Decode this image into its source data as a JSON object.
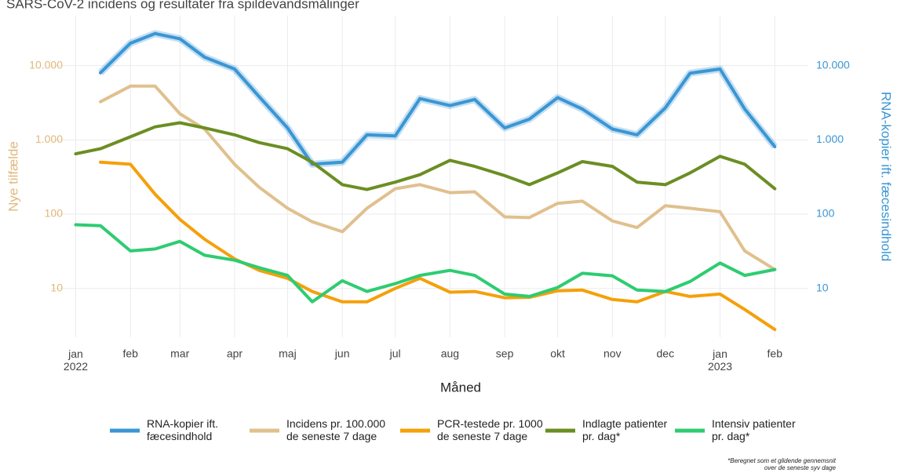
{
  "chart_data": {
    "type": "line",
    "title": "SARS-CoV-2 incidens og resultater fra spildevandsmålinger",
    "xlabel": "Måned",
    "ylabel": "Nye tilfælde",
    "y2label": "RNA-kopier ift. fæcesindhold",
    "footnote": "*Beregnet som et glidende gennemsnit\nover de seneste syv dage",
    "log_y": true,
    "grid": true,
    "legend": "bottom",
    "xlim": [
      "2021-12-18",
      "2023-02-20"
    ],
    "xticks": [
      {
        "value": "2022-01-01",
        "label": "jan\n2022"
      },
      {
        "value": "2022-02-01",
        "label": "feb"
      },
      {
        "value": "2022-03-01",
        "label": "mar"
      },
      {
        "value": "2022-04-01",
        "label": "apr"
      },
      {
        "value": "2022-05-01",
        "label": "maj"
      },
      {
        "value": "2022-06-01",
        "label": "jun"
      },
      {
        "value": "2022-07-01",
        "label": "jul"
      },
      {
        "value": "2022-08-01",
        "label": "aug"
      },
      {
        "value": "2022-09-01",
        "label": "sep"
      },
      {
        "value": "2022-10-01",
        "label": "okt"
      },
      {
        "value": "2022-11-01",
        "label": "nov"
      },
      {
        "value": "2022-12-01",
        "label": "dec"
      },
      {
        "value": "2023-01-01",
        "label": "jan\n2023"
      },
      {
        "value": "2023-02-01",
        "label": "feb"
      }
    ],
    "ylim": [
      2.2,
      47000
    ],
    "yticks": [
      10,
      100,
      {
        "value": 1000,
        "label": "1.000"
      },
      {
        "value": 10000,
        "label": "10.000"
      }
    ],
    "y2lim": [
      2.2,
      47000
    ],
    "y2ticks": [
      10,
      100,
      {
        "value": 1000,
        "label": "1.000"
      },
      {
        "value": 10000,
        "label": "10.000"
      }
    ],
    "x": [
      "2022-01-01",
      "2022-01-15",
      "2022-02-01",
      "2022-02-15",
      "2022-03-01",
      "2022-03-15",
      "2022-04-01",
      "2022-04-15",
      "2022-05-01",
      "2022-05-15",
      "2022-06-01",
      "2022-06-15",
      "2022-07-01",
      "2022-07-15",
      "2022-08-01",
      "2022-08-15",
      "2022-09-01",
      "2022-09-15",
      "2022-10-01",
      "2022-10-15",
      "2022-11-01",
      "2022-11-15",
      "2022-12-01",
      "2022-12-15",
      "2023-01-01",
      "2023-01-15",
      "2023-02-01"
    ],
    "series": [
      {
        "name": "RNA-kopier ift.\nfæcesindhold",
        "color": "#3a96d4",
        "axis": "y2",
        "values": [
          null,
          8000,
          20000,
          27000,
          23000,
          13000,
          9000,
          3800,
          1450,
          470,
          500,
          1170,
          1130,
          3600,
          2900,
          3500,
          1450,
          1900,
          3700,
          2600,
          1400,
          1170,
          2700,
          7900,
          9000,
          2600,
          810
        ]
      },
      {
        "name": "Incidens pr. 100.000\nde seneste 7 dage",
        "color": "#e0c08e",
        "values": [
          null,
          3260,
          5300,
          5300,
          2250,
          1400,
          470,
          230,
          120,
          79,
          58,
          120,
          220,
          250,
          195,
          200,
          92,
          90,
          140,
          150,
          81,
          66,
          130,
          120,
          108,
          32,
          18
        ]
      },
      {
        "name": "PCR-testede pr. 1000\nde seneste 7 dage",
        "color": "#f5a00a",
        "values": [
          null,
          500,
          470,
          185,
          85,
          46,
          25,
          17.5,
          13.7,
          9.1,
          6.6,
          6.6,
          10,
          13.7,
          8.9,
          9.1,
          7.5,
          7.6,
          9.3,
          9.5,
          7.1,
          6.6,
          9.1,
          7.8,
          8.4,
          5.2,
          2.8
        ]
      },
      {
        "name": "Indlagte patienter\npr. dag*",
        "color": "#6b8e23",
        "values": [
          650,
          760,
          1100,
          1500,
          1700,
          1450,
          1170,
          920,
          760,
          500,
          250,
          215,
          270,
          340,
          530,
          440,
          330,
          250,
          360,
          510,
          440,
          270,
          250,
          360,
          600,
          470,
          220
        ]
      },
      {
        "name": "Intensiv patienter\npr. dag*",
        "color": "#2ecc71",
        "values": [
          72,
          70,
          32,
          34,
          43,
          28,
          24,
          19,
          15,
          6.6,
          12.7,
          9.1,
          11.6,
          15,
          17.5,
          15,
          8.4,
          7.8,
          10.3,
          16,
          14.8,
          9.5,
          9.1,
          12.4,
          22,
          15,
          18
        ]
      }
    ]
  }
}
